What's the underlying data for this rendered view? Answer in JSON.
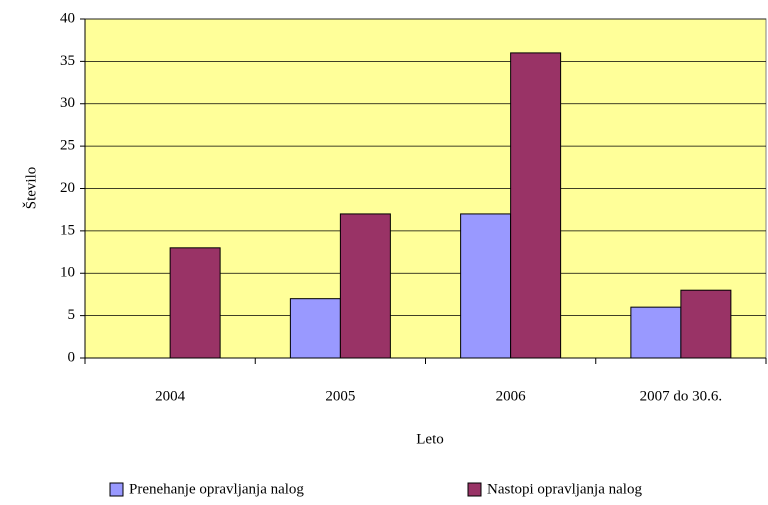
{
  "chart_data": {
    "type": "bar",
    "categories": [
      "2004",
      "2005",
      "2006",
      "2007 do 30.6."
    ],
    "series": [
      {
        "name": "Prenehanje opravljanja nalog",
        "color": "#9999ff",
        "values": [
          0,
          7,
          17,
          6
        ]
      },
      {
        "name": "Nastopi opravljanja nalog",
        "color": "#993366",
        "values": [
          13,
          17,
          36,
          8
        ]
      }
    ],
    "xlabel": "Leto",
    "ylabel": "Število",
    "ylim": [
      0,
      40
    ],
    "yticks": [
      0,
      5,
      10,
      15,
      20,
      25,
      30,
      35,
      40
    ],
    "grid": true,
    "legend": "bottom",
    "plot_background": "#ffff99"
  }
}
